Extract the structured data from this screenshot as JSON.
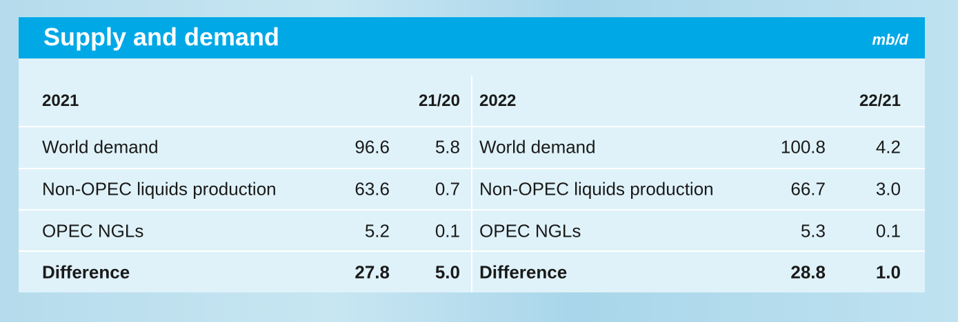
{
  "header": {
    "title": "Supply and demand",
    "unit": "mb/d"
  },
  "tables": [
    {
      "columns": [
        "2021",
        "21/20"
      ],
      "rows": [
        [
          "World demand",
          "96.6",
          "5.8"
        ],
        [
          "Non-OPEC liquids production",
          "63.6",
          "0.7"
        ],
        [
          "OPEC NGLs",
          "5.2",
          "0.1"
        ],
        [
          "Difference",
          "27.8",
          "5.0"
        ]
      ]
    },
    {
      "columns": [
        "2022",
        "22/21"
      ],
      "rows": [
        [
          "World demand",
          "100.8",
          "4.2"
        ],
        [
          "Non-OPEC liquids production",
          "66.7",
          "3.0"
        ],
        [
          "OPEC NGLs",
          "5.3",
          "0.1"
        ],
        [
          "Difference",
          "28.8",
          "1.0"
        ]
      ]
    }
  ]
}
